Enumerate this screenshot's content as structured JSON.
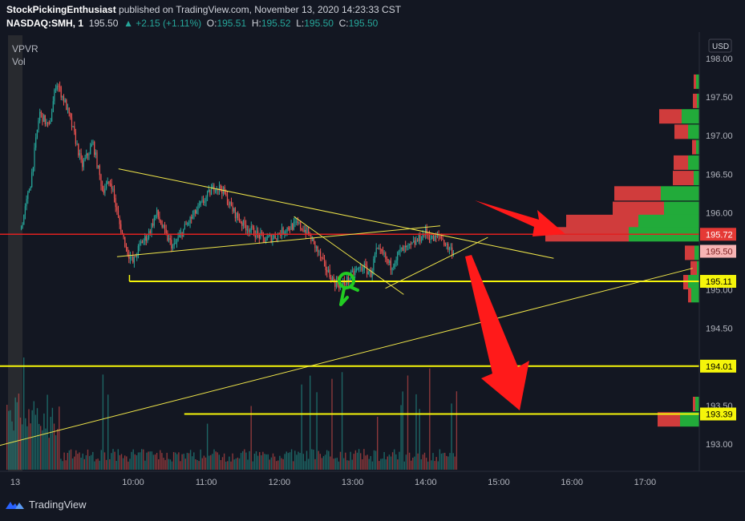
{
  "header": {
    "author": "StockPickingEnthusiast",
    "published": " published on TradingView.com, November 13, 2020 14:23:33 CST",
    "symbol": "NASDAQ:SMH, 1",
    "last": "195.50",
    "change": "▲ +2.15 (+1.11%)",
    "o_label": "O:",
    "o": "195.51",
    "h_label": "H:",
    "h": "195.52",
    "l_label": "L:",
    "l": "195.50",
    "c_label": "C:",
    "c": "195.50"
  },
  "indicators": [
    "VPVR",
    "Vol"
  ],
  "footer": {
    "brand": "TradingView"
  },
  "colors": {
    "background": "#131722",
    "up": "#26a69a",
    "down": "#ef5350",
    "vpvr_up": "#22ab3a",
    "vpvr_down": "#d03c3c",
    "trendline": "#f0e64a",
    "level_line": "#f5f50a",
    "red_line": "#e02020",
    "marker": "#22cc22",
    "arrow": "#ff1a1a"
  },
  "chart_data": {
    "type": "candlestick",
    "currency_label": "USD",
    "y_ticks": [
      {
        "v": 198.0,
        "label": "198.00"
      },
      {
        "v": 197.5,
        "label": "197.50"
      },
      {
        "v": 197.0,
        "label": "197.00"
      },
      {
        "v": 196.5,
        "label": "196.50"
      },
      {
        "v": 196.0,
        "label": "196.00"
      },
      {
        "v": 195.0,
        "label": "195.00"
      },
      {
        "v": 194.5,
        "label": "194.50"
      },
      {
        "v": 193.5,
        "label": "193.50"
      },
      {
        "v": 193.0,
        "label": "193.00"
      }
    ],
    "x_ticks": [
      {
        "t": 8.5,
        "label": "13"
      },
      {
        "t": 10.0,
        "label": "10:00"
      },
      {
        "t": 11.0,
        "label": "11:00"
      },
      {
        "t": 12.0,
        "label": "12:00"
      },
      {
        "t": 13.0,
        "label": "13:00"
      },
      {
        "t": 14.0,
        "label": "14:00"
      },
      {
        "t": 15.0,
        "label": "15:00"
      },
      {
        "t": 16.0,
        "label": "16:00"
      },
      {
        "t": 17.0,
        "label": "17:00"
      }
    ],
    "price_labels": [
      {
        "v": 195.72,
        "label": "195.72",
        "style": "red"
      },
      {
        "v": 195.5,
        "label": "195.50",
        "style": "pink"
      },
      {
        "v": 195.11,
        "label": "195.11",
        "style": "yellow"
      },
      {
        "v": 194.01,
        "label": "194.01",
        "style": "yellow"
      },
      {
        "v": 193.39,
        "label": "193.39",
        "style": "yellow"
      }
    ],
    "close_path": [
      [
        8.47,
        195.8
      ],
      [
        8.6,
        196.4
      ],
      [
        8.72,
        197.3
      ],
      [
        8.85,
        197.1
      ],
      [
        8.95,
        197.7
      ],
      [
        9.08,
        197.4
      ],
      [
        9.2,
        197.0
      ],
      [
        9.3,
        196.6
      ],
      [
        9.45,
        196.9
      ],
      [
        9.58,
        196.3
      ],
      [
        9.7,
        196.4
      ],
      [
        9.8,
        195.9
      ],
      [
        9.92,
        195.5
      ],
      [
        10.0,
        195.35
      ],
      [
        10.1,
        195.6
      ],
      [
        10.2,
        195.7
      ],
      [
        10.32,
        196.0
      ],
      [
        10.45,
        195.7
      ],
      [
        10.55,
        195.55
      ],
      [
        10.7,
        195.8
      ],
      [
        10.85,
        196.0
      ],
      [
        11.0,
        196.2
      ],
      [
        11.12,
        196.35
      ],
      [
        11.22,
        196.3
      ],
      [
        11.35,
        196.05
      ],
      [
        11.5,
        195.85
      ],
      [
        11.65,
        195.75
      ],
      [
        11.8,
        195.65
      ],
      [
        11.95,
        195.7
      ],
      [
        12.1,
        195.8
      ],
      [
        12.25,
        195.85
      ],
      [
        12.38,
        195.75
      ],
      [
        12.5,
        195.55
      ],
      [
        12.62,
        195.3
      ],
      [
        12.75,
        195.1
      ],
      [
        12.85,
        195.05
      ],
      [
        12.95,
        195.15
      ],
      [
        13.05,
        195.25
      ],
      [
        13.15,
        195.3
      ],
      [
        13.25,
        195.2
      ],
      [
        13.32,
        195.5
      ],
      [
        13.42,
        195.45
      ],
      [
        13.52,
        195.3
      ],
      [
        13.65,
        195.5
      ],
      [
        13.78,
        195.55
      ],
      [
        13.9,
        195.65
      ],
      [
        14.0,
        195.75
      ],
      [
        14.1,
        195.65
      ],
      [
        14.2,
        195.7
      ],
      [
        14.3,
        195.55
      ],
      [
        14.38,
        195.5
      ]
    ],
    "volume_profile": [
      {
        "p": 197.7,
        "down": 3,
        "up": 4
      },
      {
        "p": 197.45,
        "down": 5,
        "up": 3
      },
      {
        "p": 197.25,
        "down": 28,
        "up": 22
      },
      {
        "p": 197.05,
        "down": 17,
        "up": 14
      },
      {
        "p": 196.85,
        "down": 5,
        "up": 4
      },
      {
        "p": 196.65,
        "down": 18,
        "up": 14
      },
      {
        "p": 196.45,
        "down": 26,
        "up": 7
      },
      {
        "p": 196.25,
        "down": 58,
        "up": 48
      },
      {
        "p": 196.05,
        "down": 64,
        "up": 44
      },
      {
        "p": 195.88,
        "down": 90,
        "up": 76
      },
      {
        "p": 195.72,
        "down": 104,
        "up": 88
      },
      {
        "p": 195.48,
        "down": 12,
        "up": 6
      },
      {
        "p": 195.28,
        "down": 8,
        "up": 3
      },
      {
        "p": 195.1,
        "down": 6,
        "up": 14
      },
      {
        "p": 194.93,
        "down": 4,
        "up": 10
      },
      {
        "p": 193.52,
        "down": 3,
        "up": 5
      },
      {
        "p": 193.32,
        "down": 28,
        "up": 24
      }
    ],
    "horizontal_levels": [
      {
        "v": 195.72,
        "from": 6.9,
        "style": "red"
      },
      {
        "v": 195.11,
        "from": 9.95,
        "style": "yellow"
      },
      {
        "v": 194.01,
        "from": 7.05,
        "style": "yellow"
      },
      {
        "v": 193.39,
        "from": 10.7,
        "style": "yellow"
      }
    ],
    "trendlines": [
      [
        [
          9.8,
          196.57
        ],
        [
          15.75,
          195.41
        ]
      ],
      [
        [
          9.78,
          195.43
        ],
        [
          14.2,
          195.83
        ]
      ],
      [
        [
          12.2,
          195.95
        ],
        [
          13.7,
          194.94
        ]
      ],
      [
        [
          13.45,
          195.02
        ],
        [
          14.85,
          195.68
        ]
      ],
      [
        [
          7.3,
          192.77
        ],
        [
          17.65,
          195.28
        ]
      ]
    ],
    "volume_timeframe": "1 minute"
  }
}
